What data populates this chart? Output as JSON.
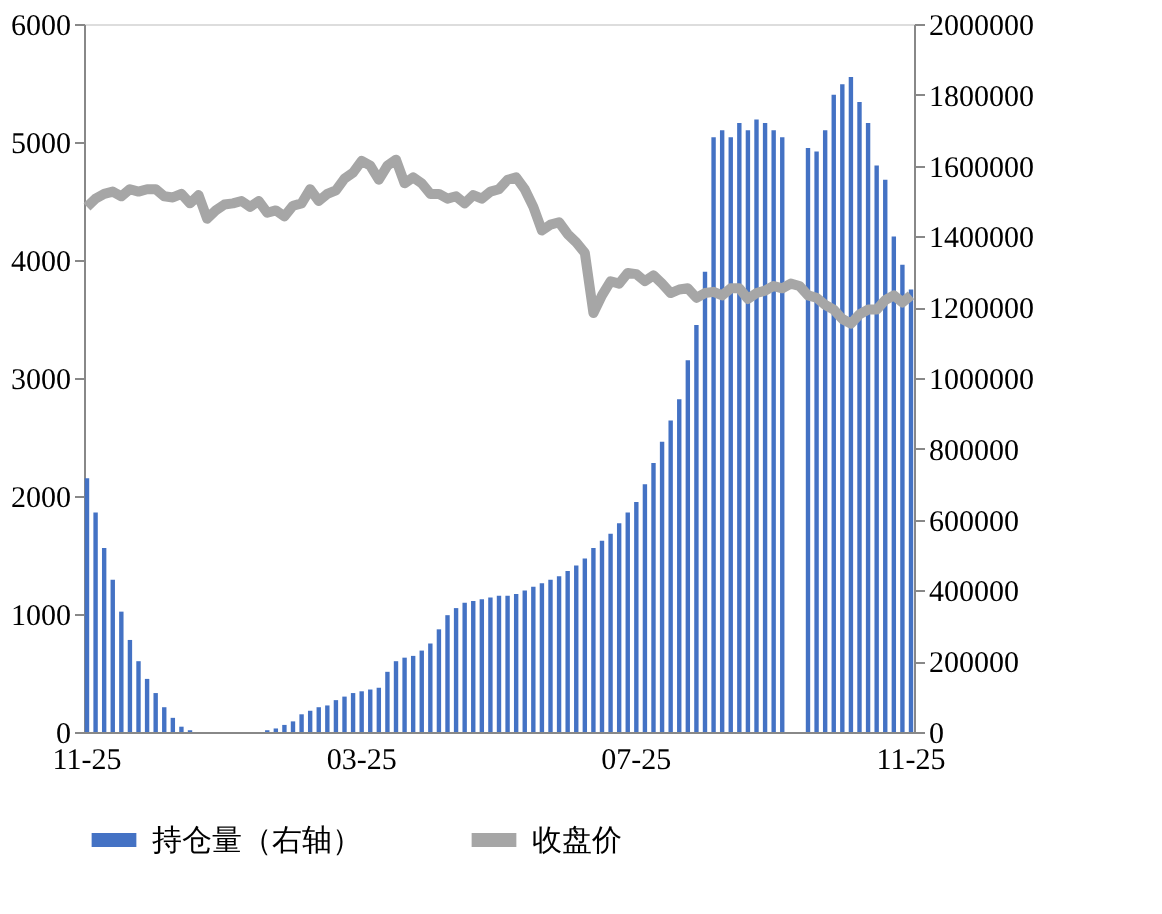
{
  "chart_data": {
    "type": "bar",
    "categories": [
      "11-25",
      null,
      null,
      null,
      null,
      null,
      null,
      null,
      null,
      null,
      null,
      null,
      null,
      null,
      null,
      null,
      null,
      null,
      null,
      null,
      null,
      null,
      null,
      null,
      null,
      null,
      null,
      null,
      null,
      null,
      null,
      null,
      "03-25",
      null,
      null,
      null,
      null,
      null,
      null,
      null,
      null,
      null,
      null,
      null,
      null,
      null,
      null,
      null,
      null,
      null,
      null,
      null,
      null,
      null,
      null,
      null,
      null,
      null,
      null,
      null,
      null,
      null,
      null,
      null,
      "07-25",
      null,
      null,
      null,
      null,
      null,
      null,
      null,
      null,
      null,
      null,
      null,
      null,
      null,
      null,
      null,
      null,
      null,
      null,
      null,
      null,
      null,
      null,
      null,
      null,
      null,
      null,
      null,
      null,
      null,
      null,
      null,
      "11-25"
    ],
    "series": [
      {
        "name": "持仓量（右轴）",
        "axis": "y2",
        "color": "#4472c4",
        "values": [
          717000,
          620000,
          520000,
          430000,
          340000,
          260000,
          200000,
          150000,
          110000,
          70000,
          40000,
          15000,
          5000,
          0,
          0,
          0,
          0,
          0,
          0,
          0,
          0,
          5000,
          10000,
          20000,
          30000,
          50000,
          60000,
          70000,
          75000,
          90000,
          100000,
          110000,
          115000,
          120000,
          125000,
          170000,
          200000,
          210000,
          215000,
          230000,
          250000,
          290000,
          330000,
          350000,
          365000,
          370000,
          375000,
          380000,
          385000,
          385000,
          390000,
          400000,
          410000,
          420000,
          430000,
          440000,
          455000,
          470000,
          490000,
          520000,
          540000,
          560000,
          590000,
          620000,
          650000,
          700000,
          760000,
          820000,
          880000,
          940000,
          1050000,
          1150000,
          1300000,
          1680000,
          1700000,
          1680000,
          1720000,
          1700000,
          1730000,
          1720000,
          1700000,
          1680000,
          null,
          null,
          1650000,
          1640000,
          1700000,
          1800000,
          1830000,
          1850000,
          1780000,
          1720000,
          1600000,
          1560000,
          1400000,
          1320000,
          1250000
        ]
      },
      {
        "name": "收盘价",
        "type": "line",
        "color": "#a6a6a6",
        "values": [
          4450,
          4520,
          4560,
          4580,
          4540,
          4600,
          4580,
          4600,
          4600,
          4540,
          4530,
          4560,
          4480,
          4550,
          4350,
          4420,
          4470,
          4480,
          4500,
          4450,
          4500,
          4400,
          4420,
          4370,
          4460,
          4480,
          4600,
          4500,
          4560,
          4590,
          4690,
          4740,
          4840,
          4800,
          4680,
          4800,
          4850,
          4650,
          4700,
          4650,
          4560,
          4560,
          4520,
          4540,
          4480,
          4550,
          4520,
          4580,
          4600,
          4680,
          4700,
          4600,
          4450,
          4250,
          4300,
          4320,
          4220,
          4150,
          4060,
          3550,
          3700,
          3820,
          3800,
          3890,
          3880,
          3820,
          3870,
          3800,
          3720,
          3750,
          3760,
          3680,
          3720,
          3730,
          3700,
          3760,
          3760,
          3670,
          3720,
          3740,
          3780,
          3760,
          3800,
          3780,
          3700,
          3680,
          3620,
          3580,
          3500,
          3460,
          3540,
          3580,
          3580,
          3660,
          3700,
          3640,
          3700
        ]
      }
    ],
    "ylim": [
      0,
      6000
    ],
    "yticks": [
      0,
      1000,
      2000,
      3000,
      4000,
      5000,
      6000
    ],
    "y2lim": [
      0,
      2000000
    ],
    "y2ticks": [
      0,
      200000,
      400000,
      600000,
      800000,
      1000000,
      1200000,
      1400000,
      1600000,
      1800000,
      2000000
    ],
    "grid": false,
    "legend": "bottom",
    "line_style": "solid",
    "marker": "none"
  }
}
